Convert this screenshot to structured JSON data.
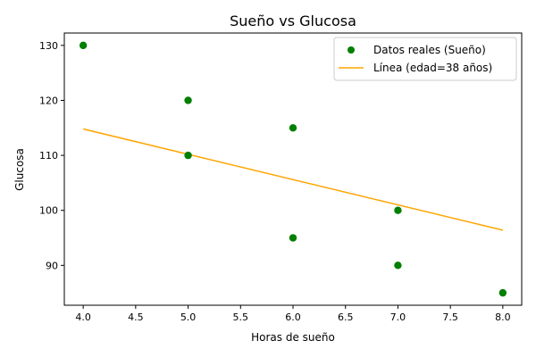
{
  "chart_data": {
    "type": "scatter",
    "title": "Sueño vs Glucosa",
    "xlabel": "Horas de sueño",
    "ylabel": "Glucosa",
    "xlim": [
      3.82,
      8.18
    ],
    "ylim": [
      82.75,
      132.25
    ],
    "xticks": [
      4.0,
      4.5,
      5.0,
      5.5,
      6.0,
      6.5,
      7.0,
      7.5,
      8.0
    ],
    "xtick_labels": [
      "4.0",
      "4.5",
      "5.0",
      "5.5",
      "6.0",
      "6.5",
      "7.0",
      "7.5",
      "8.0"
    ],
    "yticks": [
      90,
      100,
      110,
      120,
      130
    ],
    "ytick_labels": [
      "90",
      "100",
      "110",
      "120",
      "130"
    ],
    "grid": false,
    "legend_position": "top-right",
    "series": [
      {
        "name": "Datos reales (Sueño)",
        "kind": "scatter",
        "color": "#008000",
        "x": [
          4,
          5,
          5,
          6,
          6,
          7,
          7,
          8
        ],
        "y": [
          130,
          120,
          110,
          115,
          95,
          100,
          90,
          85
        ]
      },
      {
        "name": "Línea (edad=38 años)",
        "kind": "line",
        "color": "#FFA500",
        "x": [
          4.0,
          8.0
        ],
        "y": [
          114.8,
          96.4
        ]
      }
    ]
  }
}
